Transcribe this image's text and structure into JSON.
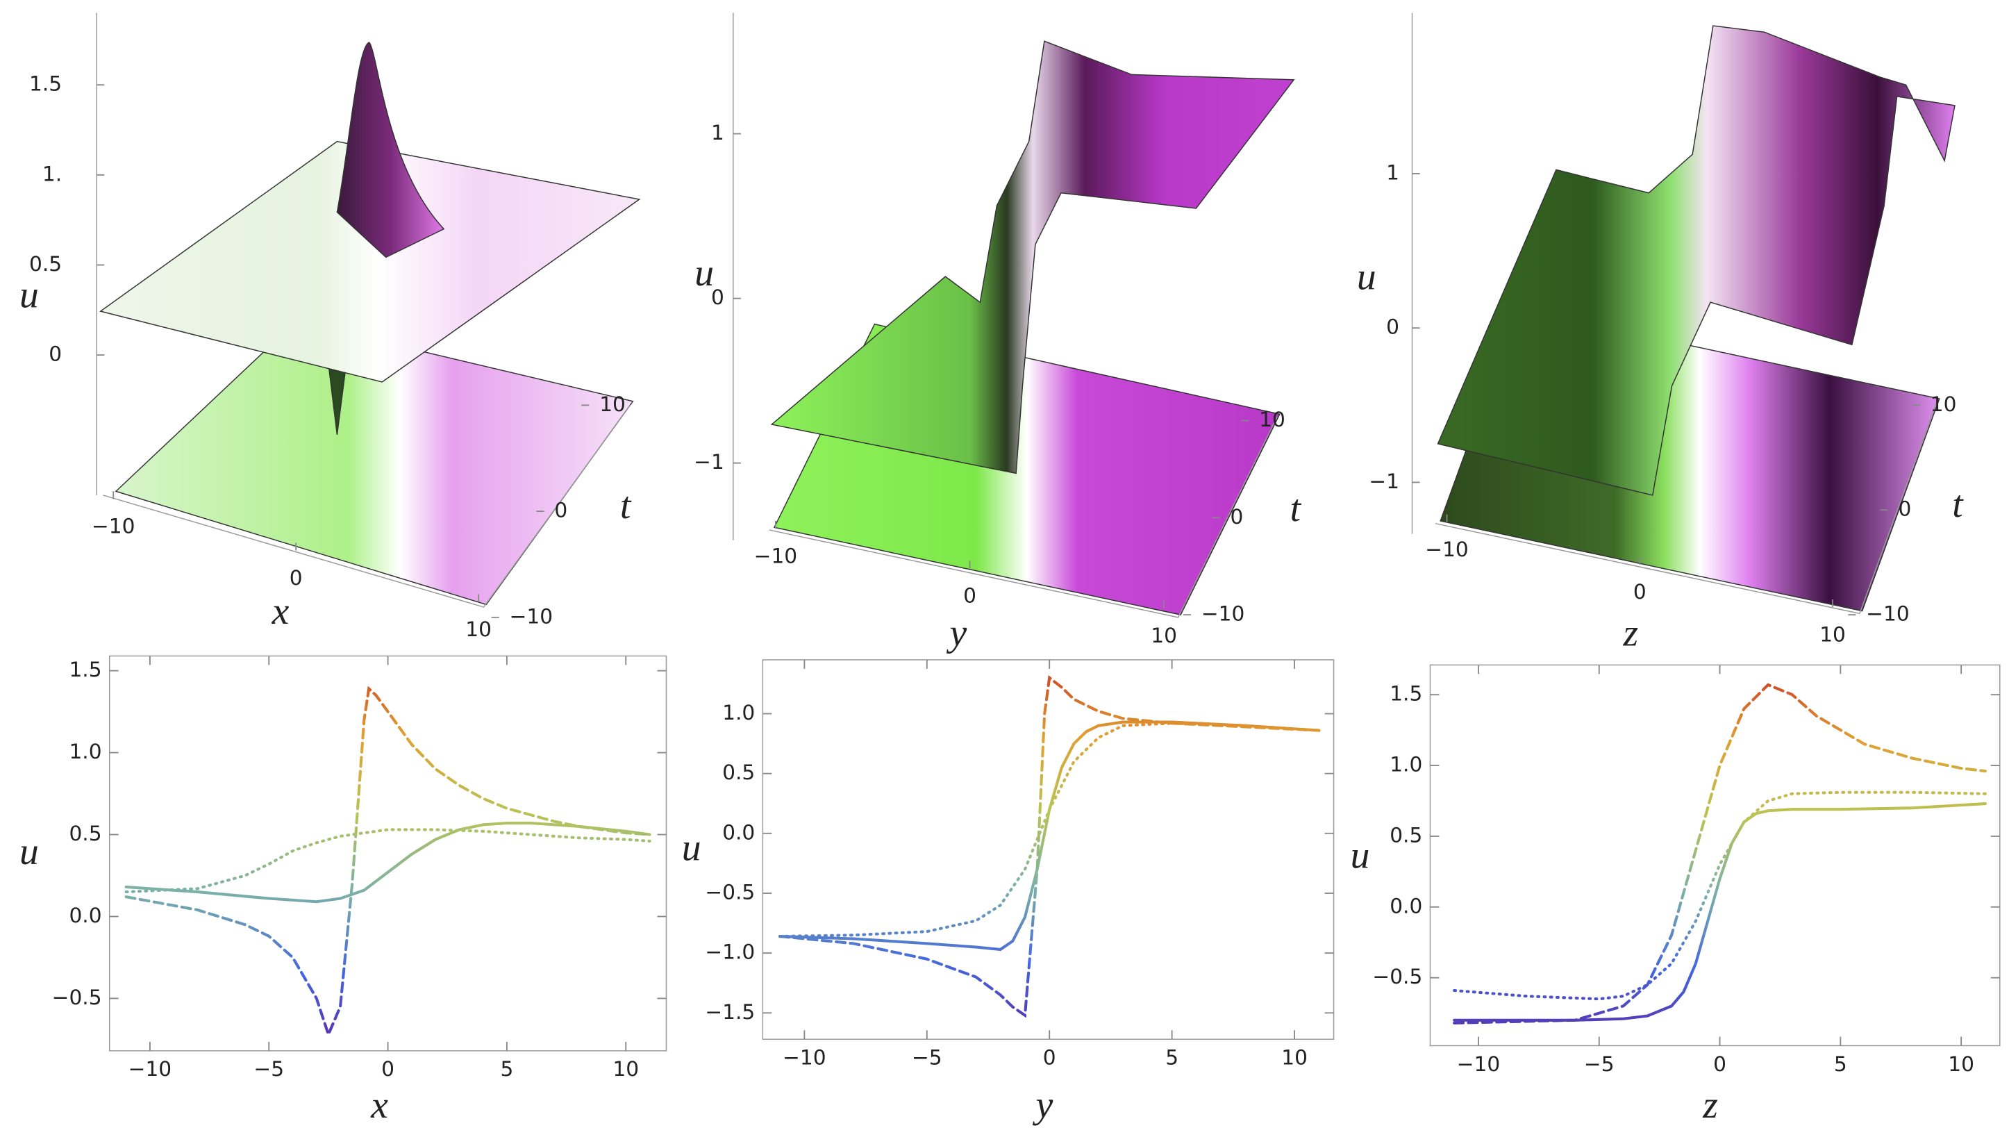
{
  "chart_data": [
    {
      "type": "surface3d",
      "xlabel": "x",
      "ylabel": "t",
      "zlabel": "u",
      "xlim": [
        -10,
        10
      ],
      "ylim": [
        -10,
        10
      ],
      "xticks": [
        {
          "value": -10,
          "label": "−10"
        },
        0,
        10
      ],
      "yticks": [
        {
          "value": -10,
          "label": "−10"
        },
        0,
        10
      ],
      "zticks": [
        0,
        0.5,
        {
          "value": 1,
          "label": "1."
        },
        1.5
      ]
    },
    {
      "type": "surface3d",
      "xlabel": "y",
      "ylabel": "t",
      "zlabel": "u",
      "xlim": [
        -10,
        10
      ],
      "ylim": [
        -10,
        10
      ],
      "xticks": [
        {
          "value": -10,
          "label": "−10"
        },
        0,
        10
      ],
      "yticks": [
        {
          "value": -10,
          "label": "−10"
        },
        0,
        10
      ],
      "zticks": [
        {
          "value": -1,
          "label": "−1"
        },
        0,
        1
      ]
    },
    {
      "type": "surface3d",
      "xlabel": "z",
      "ylabel": "t",
      "zlabel": "u",
      "xlim": [
        -10,
        10
      ],
      "ylim": [
        -10,
        10
      ],
      "xticks": [
        {
          "value": -10,
          "label": "−10"
        },
        0,
        10
      ],
      "yticks": [
        {
          "value": -10,
          "label": "−10"
        },
        0,
        10
      ],
      "zticks": [
        {
          "value": -1,
          "label": "−1"
        },
        0,
        1
      ]
    },
    {
      "type": "line",
      "xlabel": "x",
      "ylabel": "u",
      "xlim": [
        -11.7,
        11.7
      ],
      "ylim": [
        -0.82,
        1.59
      ],
      "xticks": [
        {
          "value": -10,
          "label": "−10"
        },
        {
          "value": -5,
          "label": "−5"
        },
        0,
        5,
        10
      ],
      "yticks": [
        {
          "value": -0.5,
          "label": "−0.5"
        },
        {
          "value": 0,
          "label": "0.0"
        },
        0.5,
        {
          "value": 1,
          "label": "1.0"
        },
        1.5
      ],
      "color_scale": [
        "#5a2aa8",
        "#4466dd",
        "#7ab0a8",
        "#b8c455",
        "#e0a030",
        "#cc3322"
      ],
      "series": [
        {
          "style": "solid",
          "x": [
            -11,
            -8,
            -5,
            -3,
            -2,
            -1,
            0,
            1,
            2,
            3,
            4,
            5,
            6,
            8,
            10,
            11
          ],
          "values": [
            0.18,
            0.15,
            0.11,
            0.09,
            0.11,
            0.16,
            0.27,
            0.38,
            0.47,
            0.53,
            0.56,
            0.57,
            0.57,
            0.55,
            0.52,
            0.5
          ]
        },
        {
          "style": "dashed",
          "x": [
            -11,
            -8,
            -6,
            -5,
            -4,
            -3,
            -2.5,
            -2,
            -1.5,
            -1,
            -0.8,
            -0.5,
            0,
            1,
            2,
            3,
            4,
            5,
            6,
            7,
            8,
            9,
            10,
            11
          ],
          "values": [
            0.12,
            0.04,
            -0.05,
            -0.12,
            -0.25,
            -0.5,
            -0.72,
            -0.55,
            0.2,
            1.2,
            1.39,
            1.35,
            1.25,
            1.05,
            0.9,
            0.8,
            0.72,
            0.66,
            0.62,
            0.58,
            0.55,
            0.53,
            0.51,
            0.5
          ]
        },
        {
          "style": "dotted",
          "x": [
            -11,
            -8,
            -6,
            -5,
            -4,
            -3,
            -2,
            -1,
            0,
            2,
            4,
            6,
            8,
            10,
            11
          ],
          "values": [
            0.15,
            0.17,
            0.25,
            0.32,
            0.4,
            0.45,
            0.49,
            0.51,
            0.53,
            0.53,
            0.52,
            0.5,
            0.48,
            0.47,
            0.46
          ]
        }
      ]
    },
    {
      "type": "line",
      "xlabel": "y",
      "ylabel": "u",
      "xlim": [
        -11.7,
        11.6
      ],
      "ylim": [
        -1.72,
        1.45
      ],
      "xticks": [
        {
          "value": -10,
          "label": "−10"
        },
        {
          "value": -5,
          "label": "−5"
        },
        0,
        5,
        10
      ],
      "yticks": [
        {
          "value": -1.5,
          "label": "−1.5"
        },
        {
          "value": -1,
          "label": "−1.0"
        },
        {
          "value": -0.5,
          "label": "−0.5"
        },
        {
          "value": 0,
          "label": "0.0"
        },
        0.5,
        {
          "value": 1,
          "label": "1.0"
        }
      ],
      "color_scale": [
        "#5a2aa8",
        "#4466dd",
        "#7ab0a8",
        "#b8c455",
        "#e0a030",
        "#cc3322"
      ],
      "series": [
        {
          "style": "solid",
          "x": [
            -11,
            -8,
            -5,
            -3,
            -2,
            -1.5,
            -1,
            -0.5,
            0,
            0.5,
            1,
            1.5,
            2,
            3,
            5,
            8,
            11
          ],
          "values": [
            -0.86,
            -0.88,
            -0.92,
            -0.95,
            -0.97,
            -0.9,
            -0.7,
            -0.3,
            0.2,
            0.55,
            0.75,
            0.85,
            0.9,
            0.93,
            0.93,
            0.9,
            0.86
          ]
        },
        {
          "style": "dashed",
          "x": [
            -11,
            -8,
            -5,
            -3,
            -2,
            -1.5,
            -1,
            -0.5,
            -0.2,
            0,
            0.5,
            1,
            2,
            3,
            5,
            8,
            11
          ],
          "values": [
            -0.86,
            -0.92,
            -1.05,
            -1.2,
            -1.35,
            -1.45,
            -1.52,
            -0.3,
            1.0,
            1.3,
            1.22,
            1.12,
            1.02,
            0.96,
            0.92,
            0.89,
            0.86
          ]
        },
        {
          "style": "dotted",
          "x": [
            -11,
            -8,
            -5,
            -3,
            -2,
            -1,
            0,
            1,
            2,
            3,
            5,
            8,
            11
          ],
          "values": [
            -0.86,
            -0.85,
            -0.82,
            -0.73,
            -0.6,
            -0.3,
            0.2,
            0.6,
            0.8,
            0.9,
            0.92,
            0.9,
            0.86
          ]
        }
      ]
    },
    {
      "type": "line",
      "xlabel": "z",
      "ylabel": "u",
      "xlim": [
        -12,
        11.6
      ],
      "ylim": [
        -0.98,
        1.71
      ],
      "xticks": [
        {
          "value": -10,
          "label": "−10"
        },
        {
          "value": -5,
          "label": "−5"
        },
        0,
        5,
        10
      ],
      "yticks": [
        {
          "value": -0.5,
          "label": "−0.5"
        },
        {
          "value": 0,
          "label": "0.0"
        },
        0.5,
        {
          "value": 1,
          "label": "1.0"
        },
        1.5
      ],
      "color_scale": [
        "#5a2aa8",
        "#4466dd",
        "#7ab0a8",
        "#b8c455",
        "#e0a030",
        "#cc3322"
      ],
      "series": [
        {
          "style": "solid",
          "x": [
            -11,
            -6,
            -4,
            -3,
            -2,
            -1.5,
            -1,
            -0.5,
            0,
            0.5,
            1,
            1.5,
            2,
            3,
            5,
            8,
            11
          ],
          "values": [
            -0.8,
            -0.8,
            -0.79,
            -0.77,
            -0.7,
            -0.6,
            -0.4,
            -0.1,
            0.2,
            0.45,
            0.6,
            0.66,
            0.68,
            0.69,
            0.69,
            0.7,
            0.73
          ]
        },
        {
          "style": "dashed",
          "x": [
            -11,
            -6,
            -4,
            -3,
            -2,
            -1,
            0,
            1,
            2,
            3,
            4,
            6,
            8,
            10,
            11
          ],
          "values": [
            -0.82,
            -0.8,
            -0.7,
            -0.55,
            -0.2,
            0.4,
            1.0,
            1.4,
            1.57,
            1.5,
            1.35,
            1.15,
            1.05,
            0.98,
            0.96
          ]
        },
        {
          "style": "dotted",
          "x": [
            -11,
            -8,
            -5,
            -4,
            -3,
            -2,
            -1,
            0,
            1,
            2,
            3,
            5,
            8,
            11
          ],
          "values": [
            -0.59,
            -0.63,
            -0.65,
            -0.63,
            -0.55,
            -0.4,
            -0.1,
            0.3,
            0.6,
            0.75,
            0.8,
            0.81,
            0.81,
            0.8
          ]
        }
      ]
    }
  ]
}
